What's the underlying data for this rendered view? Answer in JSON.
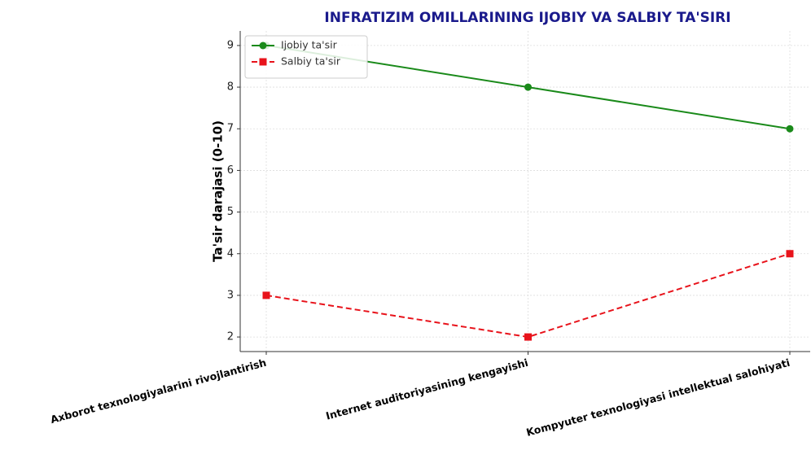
{
  "chart_data": {
    "type": "line",
    "title": "INFRATIZIM OMILLARINING IJOBIY VA SALBIY TA'SIRI",
    "y_label": "Ta'sir darajasi (0-10)",
    "categories": [
      "Axborot texnologiyalarini rivojlantirish",
      "Internet auditoriyasining kengayishi",
      "Kompyuter texnologiyasi intellektual salohiyati"
    ],
    "series": [
      {
        "name": "Ijobiy ta'sir",
        "color": "#1a8a1a",
        "marker": "circle",
        "dash": "solid",
        "values": [
          9,
          8,
          7
        ]
      },
      {
        "name": "Salbiy ta'sir",
        "color": "#e8131b",
        "marker": "square",
        "dash": "dashed",
        "values": [
          3,
          2,
          4
        ]
      }
    ],
    "ylim": [
      1.65,
      9.35
    ],
    "yticks": [
      2,
      3,
      4,
      5,
      6,
      7,
      8,
      9
    ],
    "grid": true,
    "legend": "upper left"
  }
}
